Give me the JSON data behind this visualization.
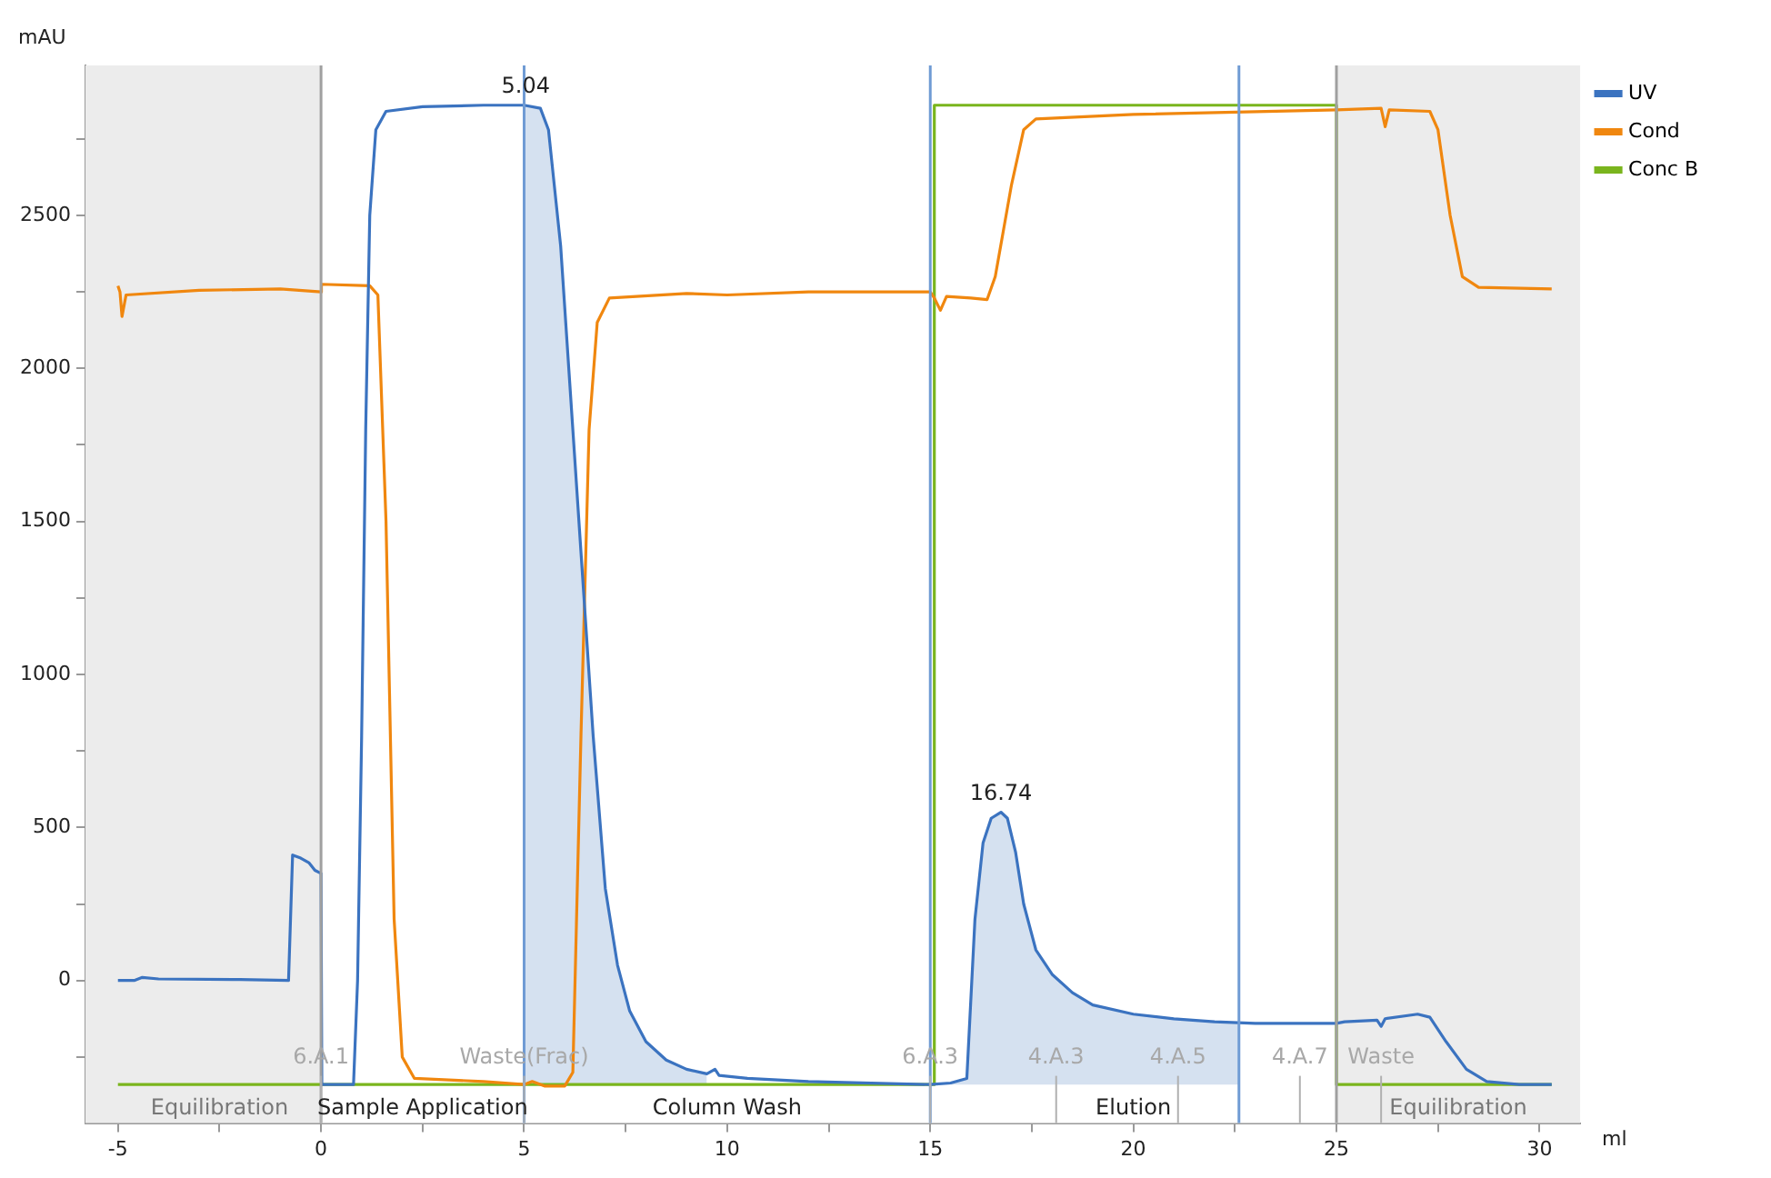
{
  "chart_data": {
    "type": "line",
    "ylabel": "mAU",
    "xlabel": "ml",
    "xlim": [
      -5.8,
      31
    ],
    "ylim": [
      -466,
      2990
    ],
    "xticks": [
      -5,
      {
        "value": -2.5,
        "label": null
      },
      0,
      {
        "value": 2.5,
        "label": null
      },
      5,
      {
        "value": 7.5,
        "label": null
      },
      10,
      {
        "value": 12.5,
        "label": null
      },
      15,
      {
        "value": 17.5,
        "label": null
      },
      20,
      {
        "value": 22.5,
        "label": null
      },
      25,
      {
        "value": 27.5,
        "label": null
      },
      30
    ],
    "yticks": [
      {
        "value": -250,
        "label": null
      },
      0,
      {
        "value": 250,
        "label": null
      },
      500,
      {
        "value": 750,
        "label": null
      },
      1000,
      {
        "value": 1250,
        "label": null
      },
      1500,
      {
        "value": 1750,
        "label": null
      },
      2000,
      {
        "value": 2250,
        "label": null
      },
      2500,
      {
        "value": 2750,
        "label": null
      }
    ],
    "legend": "top right",
    "marker": "none",
    "line_style": "solid",
    "series": [
      {
        "name": "UV",
        "color": "#3b73c0",
        "x": [
          -5,
          -4.6,
          -4.4,
          -4,
          -2,
          -0.8,
          -0.7,
          -0.5,
          -0.3,
          -0.15,
          0,
          0.02,
          0.8,
          0.9,
          1.0,
          1.1,
          1.2,
          1.35,
          1.6,
          2.5,
          4,
          5,
          5.4,
          5.6,
          5.9,
          6.1,
          6.4,
          6.7,
          7,
          7.3,
          7.6,
          8,
          8.5,
          9,
          9.5,
          9.7,
          9.8,
          10.5,
          12,
          15,
          15.5,
          15.9,
          16.1,
          16.3,
          16.5,
          16.74,
          16.9,
          17.1,
          17.3,
          17.6,
          18,
          18.5,
          19,
          20,
          21,
          22,
          23,
          25,
          25.2,
          26,
          26.1,
          26.2,
          27,
          27.3,
          27.7,
          28.2,
          28.7,
          29.5,
          30.3
        ],
        "values": [
          0,
          0,
          10,
          5,
          3,
          0,
          410,
          400,
          385,
          360,
          350,
          -340,
          -340,
          0,
          800,
          1800,
          2500,
          2780,
          2840,
          2855,
          2860,
          2860,
          2850,
          2780,
          2400,
          2000,
          1400,
          800,
          300,
          50,
          -100,
          -200,
          -260,
          -290,
          -305,
          -290,
          -310,
          -320,
          -330,
          -340,
          -335,
          -320,
          200,
          450,
          530,
          550,
          530,
          420,
          250,
          100,
          20,
          -40,
          -80,
          -110,
          -125,
          -135,
          -140,
          -140,
          -135,
          -130,
          -150,
          -125,
          -110,
          -120,
          -200,
          -290,
          -330,
          -340,
          -340
        ]
      },
      {
        "name": "Cond",
        "color": "#f0870f",
        "x": [
          -5,
          -4.95,
          -4.9,
          -4.8,
          -3,
          -1,
          0,
          0.01,
          1.2,
          1.4,
          1.6,
          1.8,
          2.0,
          2.3,
          4,
          5,
          5.2,
          5.5,
          6,
          6.2,
          6.4,
          6.6,
          6.8,
          7.1,
          9,
          10,
          12,
          15,
          15.1,
          15.25,
          15.4,
          16,
          16.4,
          16.6,
          17,
          17.3,
          17.6,
          20,
          25,
          26.1,
          26.2,
          26.3,
          27.3,
          27.5,
          27.8,
          28.1,
          28.5,
          30.3
        ],
        "values": [
          2270,
          2250,
          2170,
          2240,
          2255,
          2260,
          2250,
          2275,
          2270,
          2240,
          1500,
          200,
          -250,
          -320,
          -330,
          -340,
          -330,
          -345,
          -345,
          -300,
          800,
          1800,
          2150,
          2230,
          2245,
          2240,
          2250,
          2250,
          2230,
          2190,
          2235,
          2230,
          2225,
          2300,
          2600,
          2780,
          2815,
          2830,
          2845,
          2850,
          2790,
          2845,
          2840,
          2780,
          2500,
          2300,
          2265,
          2260
        ]
      },
      {
        "name": "Conc B",
        "color": "#7ab51d",
        "x": [
          -5,
          15.1,
          15.1,
          25,
          25,
          30.3
        ],
        "values": [
          -340,
          -340,
          2860,
          2860,
          -340,
          -340
        ]
      },
      {
        "type": "area",
        "color": "#d5e1f0",
        "x": [
          5,
          5,
          5.4,
          5.6,
          5.9,
          6.1,
          6.4,
          6.7,
          7,
          7.3,
          7.6,
          8,
          8.5,
          9,
          9.5,
          9.5
        ],
        "values": [
          -340,
          2860,
          2850,
          2780,
          2400,
          2000,
          1400,
          800,
          300,
          50,
          -100,
          -200,
          -260,
          -290,
          -305,
          -340
        ]
      },
      {
        "type": "area",
        "color": "#d5e1f0",
        "x": [
          15,
          15.5,
          15.9,
          16.1,
          16.3,
          16.5,
          16.74,
          16.9,
          17.1,
          17.3,
          17.6,
          18,
          18.5,
          19,
          20,
          21,
          22,
          22.6,
          22.6
        ],
        "values": [
          -340,
          -335,
          -320,
          200,
          450,
          530,
          550,
          530,
          420,
          250,
          100,
          20,
          -40,
          -80,
          -110,
          -125,
          -135,
          -140,
          -340
        ]
      }
    ],
    "bands": [
      {
        "axis": "x",
        "from": -5.8,
        "to": 0,
        "color": "#ececec",
        "label": "Equilibration"
      },
      {
        "axis": "x",
        "from": 0,
        "to": 5,
        "color": "#ffffff",
        "label": "Sample Application"
      },
      {
        "axis": "x",
        "from": 5,
        "to": 15,
        "color": "#ffffff",
        "label": "Column Wash"
      },
      {
        "axis": "x",
        "from": 15,
        "to": 25,
        "color": "#ffffff",
        "label": "Elution"
      },
      {
        "axis": "x",
        "from": 25,
        "to": 31,
        "color": "#ececec",
        "label": "Equilibration"
      }
    ],
    "ref_lines": [
      {
        "axis": "x",
        "value": 0,
        "color": "#a0a0a0"
      },
      {
        "axis": "x",
        "value": 25,
        "color": "#a0a0a0"
      },
      {
        "axis": "x",
        "value": 5,
        "color": "#6f9bd4"
      },
      {
        "axis": "x",
        "value": 15,
        "color": "#6f9bd4"
      },
      {
        "axis": "x",
        "value": 22.6,
        "color": "#6f9bd4"
      },
      {
        "axis": "x",
        "value": 0,
        "label": "6.A.1",
        "color": "#b0b0b0"
      },
      {
        "axis": "x",
        "value": 5,
        "label": "Waste(Frac)",
        "color": "#b0b0b0"
      },
      {
        "axis": "x",
        "value": 15,
        "label": "6.A.3",
        "color": "#b0b0b0"
      },
      {
        "axis": "x",
        "value": 18.1,
        "label": "4.A.3",
        "color": "#b0b0b0"
      },
      {
        "axis": "x",
        "value": 21.1,
        "label": "4.A.5",
        "color": "#b0b0b0"
      },
      {
        "axis": "x",
        "value": 24.1,
        "label": "4.A.7",
        "color": "#b0b0b0"
      },
      {
        "axis": "x",
        "value": 26.1,
        "label": "Waste",
        "color": "#b0b0b0"
      }
    ],
    "annotations": [
      {
        "text": "5.04",
        "x": 5.04,
        "y": 2860
      },
      {
        "text": "16.74",
        "x": 16.74,
        "y": 550
      }
    ]
  }
}
